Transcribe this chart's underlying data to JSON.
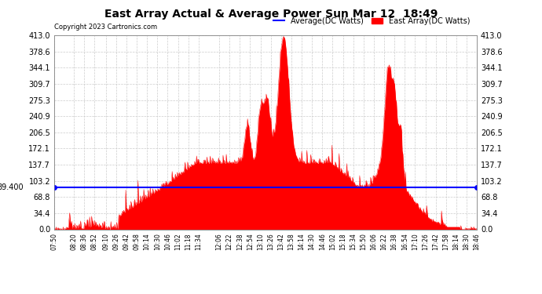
{
  "title": "East Array Actual & Average Power Sun Mar 12  18:49",
  "copyright": "Copyright 2023 Cartronics.com",
  "legend_avg": "Average(DC Watts)",
  "legend_east": "East Array(DC Watts)",
  "legend_avg_color": "blue",
  "legend_east_color": "red",
  "avg_value": 89.4,
  "avg_label": "89.400",
  "ymin": 0.0,
  "ymax": 413.0,
  "yticks": [
    0.0,
    34.4,
    68.8,
    103.2,
    137.7,
    172.1,
    206.5,
    240.9,
    275.3,
    309.7,
    344.1,
    378.6,
    413.0
  ],
  "ytick_labels": [
    "0.0",
    "34.4",
    "68.8",
    "103.2",
    "137.7",
    "172.1",
    "206.5",
    "240.9",
    "275.3",
    "309.7",
    "344.1",
    "378.6",
    "413.0"
  ],
  "xtick_labels": [
    "07:50",
    "08:20",
    "08:36",
    "08:52",
    "09:10",
    "09:26",
    "09:42",
    "09:58",
    "10:14",
    "10:30",
    "10:46",
    "11:02",
    "11:18",
    "11:34",
    "12:06",
    "12:22",
    "12:38",
    "12:54",
    "13:10",
    "13:26",
    "13:42",
    "13:58",
    "14:14",
    "14:30",
    "14:46",
    "15:02",
    "15:18",
    "15:34",
    "15:50",
    "16:06",
    "16:22",
    "16:38",
    "16:54",
    "17:10",
    "17:26",
    "17:42",
    "17:58",
    "18:14",
    "18:30",
    "18:46"
  ],
  "bg_color": "#ffffff",
  "grid_color": "#cccccc",
  "fill_color": "red",
  "line_color": "red"
}
